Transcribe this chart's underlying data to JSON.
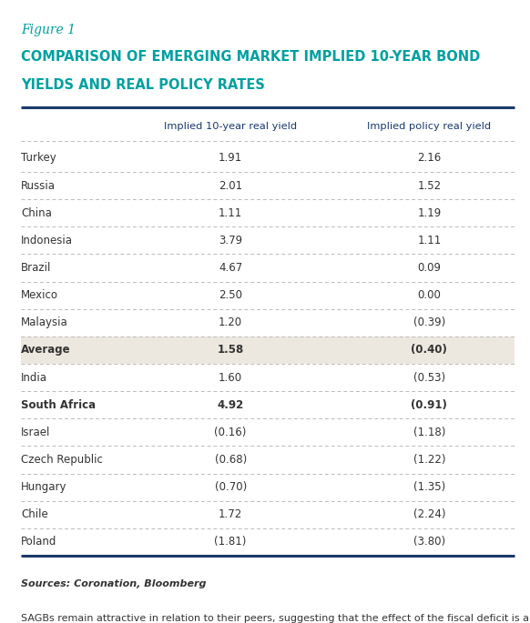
{
  "figure_label": "Figure 1",
  "title_line1": "COMPARISON OF EMERGING MARKET IMPLIED 10-YEAR BOND",
  "title_line2": "YIELDS AND REAL POLICY RATES",
  "col1_header": "Implied 10-year real yield",
  "col2_header": "Implied policy real yield",
  "rows": [
    {
      "country": "Turkey",
      "bold": false,
      "highlighted": false,
      "val1": "1.91",
      "val2": "2.16"
    },
    {
      "country": "Russia",
      "bold": false,
      "highlighted": false,
      "val1": "2.01",
      "val2": "1.52"
    },
    {
      "country": "China",
      "bold": false,
      "highlighted": false,
      "val1": "1.11",
      "val2": "1.19"
    },
    {
      "country": "Indonesia",
      "bold": false,
      "highlighted": false,
      "val1": "3.79",
      "val2": "1.11"
    },
    {
      "country": "Brazil",
      "bold": false,
      "highlighted": false,
      "val1": "4.67",
      "val2": "0.09"
    },
    {
      "country": "Mexico",
      "bold": false,
      "highlighted": false,
      "val1": "2.50",
      "val2": "0.00"
    },
    {
      "country": "Malaysia",
      "bold": false,
      "highlighted": false,
      "val1": "1.20",
      "val2": "(0.39)"
    },
    {
      "country": "Average",
      "bold": true,
      "highlighted": true,
      "val1": "1.58",
      "val2": "(0.40)"
    },
    {
      "country": "India",
      "bold": false,
      "highlighted": false,
      "val1": "1.60",
      "val2": "(0.53)"
    },
    {
      "country": "South Africa",
      "bold": true,
      "highlighted": false,
      "val1": "4.92",
      "val2": "(0.91)"
    },
    {
      "country": "Israel",
      "bold": false,
      "highlighted": false,
      "val1": "(0.16)",
      "val2": "(1.18)"
    },
    {
      "country": "Czech Republic",
      "bold": false,
      "highlighted": false,
      "val1": "(0.68)",
      "val2": "(1.22)"
    },
    {
      "country": "Hungary",
      "bold": false,
      "highlighted": false,
      "val1": "(0.70)",
      "val2": "(1.35)"
    },
    {
      "country": "Chile",
      "bold": false,
      "highlighted": false,
      "val1": "1.72",
      "val2": "(2.24)"
    },
    {
      "country": "Poland",
      "bold": false,
      "highlighted": false,
      "val1": "(1.81)",
      "val2": "(3.80)"
    }
  ],
  "sources_text": "Sources: Coronation, Bloomberg",
  "note_text": "SAGBs remain attractive in relation to their peers, suggesting that the effect of the fiscal deficit is already\npriced in.",
  "bg_color": "#ffffff",
  "highlight_color": "#ede8df",
  "top_rule_color": "#1a3a6b",
  "bottom_rule_color": "#1a3a6b",
  "header_divider_color": "#bbbbbb",
  "row_divider_color": "#bbbbbb",
  "title_color": "#00a0a0",
  "figure_label_color": "#00a0a0",
  "header_text_color": "#1a3a6b",
  "body_text_color": "#333333"
}
